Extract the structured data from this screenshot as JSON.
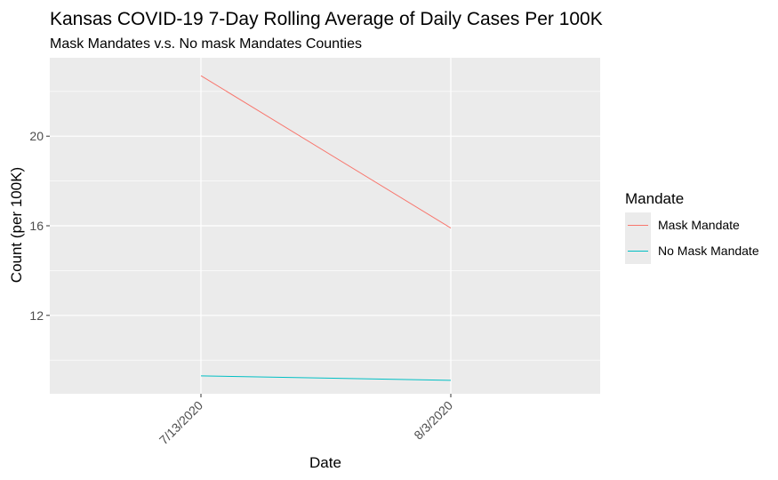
{
  "chart_data": {
    "type": "line",
    "title": "Kansas COVID-19 7-Day Rolling Average of Daily Cases Per 100K",
    "subtitle": "Mask Mandates v.s. No mask Mandates Counties",
    "xlabel": "Date",
    "ylabel": "Count (per 100K)",
    "categories": [
      "7/13/2020",
      "8/3/2020"
    ],
    "y_ticks": [
      12,
      16,
      20
    ],
    "ylim": [
      8.5,
      23.5
    ],
    "grid": true,
    "legend": {
      "title": "Mandate",
      "position": "right"
    },
    "series": [
      {
        "name": "Mask Mandate",
        "color": "#F8766D",
        "values": [
          22.7,
          15.9
        ]
      },
      {
        "name": "No Mask Mandate",
        "color": "#00BFC4",
        "values": [
          9.3,
          9.1
        ]
      }
    ],
    "panel_color": "#EBEBEB",
    "grid_color": "#FFFFFF"
  }
}
